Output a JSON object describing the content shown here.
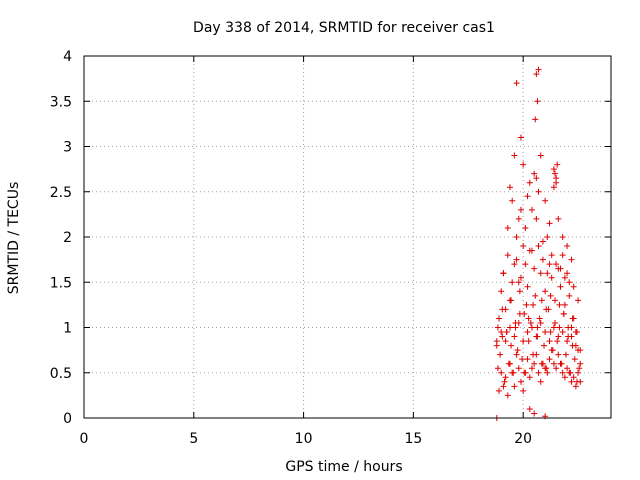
{
  "chart_data": {
    "type": "scatter",
    "title": "Day 338 of 2014, SRMTID for receiver cas1",
    "xlabel": "GPS time / hours",
    "ylabel": "SRMTID / TECUs",
    "xlim": [
      0,
      24
    ],
    "ylim": [
      0,
      4
    ],
    "xticks": [
      0,
      5,
      10,
      15,
      20
    ],
    "yticks": [
      0,
      0.5,
      1,
      1.5,
      2,
      2.5,
      3,
      3.5,
      4
    ],
    "ytick_labels": [
      "0",
      "0.5",
      "1",
      "1.5",
      "2",
      "2.5",
      "3",
      "3.5",
      "4"
    ],
    "grid": true,
    "marker": "plus",
    "series": [
      {
        "name": "SRMTID",
        "color": "#e00000",
        "x": [
          18.8,
          18.85,
          18.9,
          18.95,
          19.0,
          19.05,
          19.1,
          19.15,
          19.2,
          19.25,
          19.3,
          19.35,
          19.4,
          19.45,
          19.5,
          19.55,
          19.6,
          19.65,
          19.7,
          19.75,
          19.8,
          19.85,
          19.9,
          19.95,
          20.0,
          20.05,
          20.1,
          20.15,
          20.2,
          20.25,
          20.3,
          20.35,
          20.4,
          20.45,
          20.5,
          20.55,
          20.6,
          20.65,
          20.7,
          20.75,
          20.8,
          20.85,
          20.9,
          20.95,
          21.0,
          21.05,
          21.1,
          21.15,
          21.2,
          21.25,
          21.3,
          21.35,
          21.4,
          21.45,
          21.5,
          21.55,
          21.6,
          21.65,
          21.7,
          21.75,
          21.8,
          21.85,
          21.9,
          21.95,
          22.0,
          22.05,
          22.1,
          22.15,
          22.2,
          22.25,
          22.3,
          22.35,
          22.4,
          22.45,
          22.5,
          22.55,
          22.6,
          18.8,
          18.9,
          19.0,
          19.1,
          19.2,
          19.3,
          19.4,
          19.5,
          19.6,
          19.7,
          19.8,
          19.9,
          20.0,
          20.1,
          20.2,
          20.3,
          20.4,
          20.5,
          20.6,
          20.7,
          20.8,
          20.9,
          21.0,
          21.1,
          21.2,
          21.3,
          21.4,
          21.5,
          21.6,
          21.7,
          21.8,
          21.9,
          22.0,
          22.1,
          22.2,
          22.3,
          22.4,
          22.5,
          22.6,
          18.85,
          19.05,
          19.25,
          19.45,
          19.65,
          19.85,
          20.05,
          20.25,
          20.45,
          20.65,
          20.85,
          21.05,
          21.25,
          21.45,
          21.65,
          21.85,
          22.05,
          22.25,
          22.45,
          18.8,
          19.0,
          19.2,
          19.4,
          19.6,
          19.8,
          20.0,
          20.2,
          20.4,
          20.6,
          20.8,
          21.0,
          21.2,
          21.4,
          21.6,
          21.8,
          22.0,
          22.2,
          22.4,
          22.6,
          19.1,
          19.3,
          19.5,
          19.7,
          19.9,
          20.1,
          20.3,
          20.5,
          20.7,
          20.9,
          21.1,
          21.3,
          21.5,
          21.7,
          21.9,
          22.1,
          22.3,
          22.5,
          19.6,
          19.8,
          20.0,
          20.2,
          20.4,
          20.6,
          20.8,
          21.0,
          21.2,
          21.4,
          21.6,
          21.8,
          22.0,
          22.2,
          19.4,
          19.7,
          19.9,
          20.6,
          20.7,
          20.55,
          20.65,
          21.45,
          21.5,
          21.55,
          20.3,
          20.5,
          21.0
        ],
        "y": [
          0.85,
          0.55,
          1.1,
          0.7,
          1.4,
          0.9,
          1.6,
          0.4,
          1.2,
          0.95,
          2.1,
          0.6,
          1.3,
          0.8,
          2.4,
          0.5,
          1.7,
          1.0,
          2.0,
          0.75,
          1.5,
          1.15,
          2.3,
          0.65,
          1.9,
          0.5,
          2.1,
          1.25,
          1.45,
          0.85,
          2.6,
          1.05,
          1.85,
          0.7,
          2.7,
          1.35,
          2.2,
          0.9,
          2.5,
          1.1,
          1.6,
          0.6,
          1.95,
          0.8,
          1.4,
          0.55,
          2.0,
          1.2,
          1.7,
          0.95,
          1.55,
          0.75,
          2.75,
          1.3,
          2.6,
          0.85,
          1.65,
          1.0,
          1.45,
          0.6,
          1.8,
          1.15,
          1.25,
          0.7,
          1.6,
          0.9,
          1.35,
          0.5,
          1.0,
          0.8,
          1.1,
          0.65,
          0.95,
          0.4,
          0.75,
          0.55,
          0.6,
          0.0,
          0.3,
          0.5,
          0.35,
          0.45,
          0.25,
          0.6,
          0.5,
          0.35,
          0.7,
          0.55,
          0.4,
          0.3,
          0.5,
          0.65,
          0.45,
          0.55,
          0.6,
          0.7,
          0.5,
          0.4,
          0.6,
          0.55,
          0.5,
          0.65,
          0.75,
          0.6,
          0.55,
          0.7,
          0.6,
          0.5,
          0.45,
          0.55,
          0.5,
          0.4,
          0.45,
          0.35,
          0.5,
          0.4,
          1.0,
          1.2,
          0.95,
          1.3,
          1.05,
          1.4,
          1.15,
          1.1,
          1.25,
          1.0,
          1.3,
          1.2,
          1.35,
          1.05,
          1.25,
          1.15,
          1.0,
          1.1,
          0.95,
          0.8,
          0.95,
          0.85,
          1.0,
          0.9,
          1.05,
          0.85,
          0.95,
          1.0,
          0.9,
          1.05,
          0.95,
          0.85,
          1.0,
          0.9,
          0.95,
          0.85,
          0.9,
          0.8,
          0.75,
          1.6,
          1.8,
          1.5,
          1.75,
          1.55,
          1.7,
          1.85,
          1.65,
          1.9,
          1.75,
          1.6,
          1.8,
          1.7,
          1.65,
          1.55,
          1.5,
          1.45,
          1.3,
          2.9,
          2.2,
          2.8,
          2.45,
          2.3,
          2.65,
          2.9,
          2.4,
          2.15,
          2.55,
          2.2,
          2.0,
          1.9,
          1.75,
          2.55,
          3.7,
          3.1,
          3.8,
          3.85,
          3.3,
          3.5,
          2.7,
          2.65,
          2.8,
          0.1,
          0.05,
          0.02
        ]
      }
    ]
  }
}
